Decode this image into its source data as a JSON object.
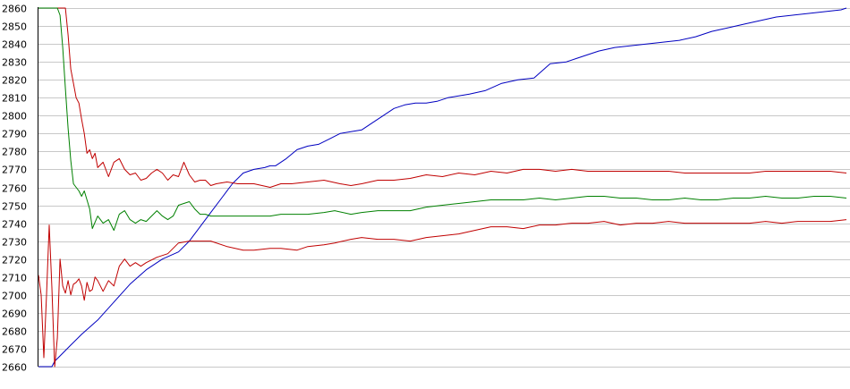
{
  "chart_data": {
    "type": "line",
    "title": "",
    "xlabel": "",
    "ylabel": "",
    "ylim": [
      2660,
      2860
    ],
    "xlim": [
      0,
      300
    ],
    "grid": true,
    "yticks": [
      "2660",
      "2670",
      "2680",
      "2690",
      "2700",
      "2710",
      "2720",
      "2730",
      "2740",
      "2750",
      "2760",
      "2770",
      "2780",
      "2790",
      "2800",
      "2810",
      "2820",
      "2830",
      "2840",
      "2850",
      "2860"
    ],
    "series": [
      {
        "key": "blue",
        "color": "#0000c0",
        "x": [
          0,
          5,
          6,
          8,
          12,
          16,
          22,
          28,
          34,
          40,
          46,
          52,
          56,
          60,
          64,
          68,
          72,
          76,
          80,
          84,
          86,
          88,
          92,
          96,
          100,
          104,
          108,
          112,
          116,
          120,
          124,
          128,
          132,
          136,
          140,
          144,
          148,
          152,
          156,
          160,
          166,
          172,
          178,
          184,
          190,
          196,
          200,
          204,
          208,
          214,
          220,
          226,
          232,
          238,
          244,
          250,
          256,
          262,
          268,
          274,
          280,
          286,
          292,
          298,
          300
        ],
        "values": [
          2660,
          2660,
          2663,
          2666,
          2672,
          2678,
          2686,
          2696,
          2706,
          2714,
          2720,
          2724,
          2730,
          2738,
          2746,
          2754,
          2762,
          2768,
          2770,
          2771,
          2772,
          2772,
          2776,
          2781,
          2783,
          2784,
          2787,
          2790,
          2791,
          2792,
          2796,
          2800,
          2804,
          2806,
          2807,
          2807,
          2808,
          2810,
          2811,
          2812,
          2814,
          2818,
          2820,
          2821,
          2829,
          2830,
          2832,
          2834,
          2836,
          2838,
          2839,
          2840,
          2841,
          2842,
          2844,
          2847,
          2849,
          2851,
          2853,
          2855,
          2856,
          2857,
          2858,
          2859,
          2860
        ]
      },
      {
        "key": "red-upper",
        "color": "#c00000",
        "x": [
          0,
          2,
          4,
          6,
          8,
          9,
          10,
          11,
          12,
          13,
          14,
          15,
          16,
          17,
          18,
          19,
          20,
          21,
          22,
          24,
          26,
          28,
          30,
          32,
          34,
          36,
          38,
          40,
          42,
          44,
          46,
          48,
          50,
          52,
          54,
          56,
          58,
          60,
          62,
          64,
          66,
          70,
          74,
          80,
          86,
          90,
          94,
          100,
          106,
          112,
          116,
          120,
          126,
          132,
          138,
          144,
          150,
          156,
          162,
          168,
          174,
          180,
          186,
          192,
          198,
          204,
          210,
          216,
          222,
          228,
          234,
          240,
          246,
          252,
          258,
          264,
          270,
          276,
          282,
          288,
          294,
          300
        ],
        "values": [
          2860,
          2860,
          2860,
          2860,
          2860,
          2860,
          2860,
          2845,
          2826,
          2818,
          2810,
          2807,
          2798,
          2790,
          2779,
          2781,
          2776,
          2779,
          2771,
          2774,
          2766,
          2774,
          2776,
          2770,
          2767,
          2768,
          2764,
          2765,
          2768,
          2770,
          2768,
          2764,
          2767,
          2766,
          2774,
          2767,
          2763,
          2764,
          2764,
          2761,
          2762,
          2763,
          2762,
          2762,
          2760,
          2762,
          2762,
          2763,
          2764,
          2762,
          2761,
          2762,
          2764,
          2764,
          2765,
          2767,
          2766,
          2768,
          2767,
          2769,
          2768,
          2770,
          2770,
          2769,
          2770,
          2769,
          2769,
          2769,
          2769,
          2769,
          2769,
          2768,
          2768,
          2768,
          2768,
          2768,
          2769,
          2769,
          2769,
          2769,
          2769,
          2768
        ]
      },
      {
        "key": "green",
        "color": "#008000",
        "x": [
          0,
          2,
          4,
          6,
          7,
          8,
          9,
          10,
          11,
          12,
          13,
          14,
          15,
          16,
          17,
          18,
          19,
          20,
          22,
          24,
          26,
          28,
          30,
          32,
          34,
          36,
          38,
          40,
          42,
          44,
          46,
          48,
          50,
          52,
          54,
          56,
          58,
          60,
          62,
          64,
          70,
          76,
          80,
          86,
          90,
          96,
          100,
          106,
          110,
          116,
          120,
          126,
          132,
          138,
          144,
          150,
          156,
          162,
          168,
          174,
          180,
          186,
          192,
          198,
          204,
          210,
          216,
          222,
          228,
          234,
          240,
          246,
          252,
          258,
          264,
          270,
          276,
          282,
          288,
          294,
          300
        ],
        "values": [
          2860,
          2860,
          2860,
          2860,
          2860,
          2856,
          2838,
          2815,
          2793,
          2775,
          2762,
          2760,
          2758,
          2755,
          2758,
          2753,
          2748,
          2737,
          2744,
          2740,
          2742,
          2736,
          2745,
          2747,
          2742,
          2740,
          2742,
          2741,
          2744,
          2747,
          2744,
          2742,
          2744,
          2750,
          2751,
          2752,
          2748,
          2745,
          2745,
          2744,
          2744,
          2744,
          2744,
          2744,
          2745,
          2745,
          2745,
          2746,
          2747,
          2745,
          2746,
          2747,
          2747,
          2747,
          2749,
          2750,
          2751,
          2752,
          2753,
          2753,
          2753,
          2754,
          2753,
          2754,
          2755,
          2755,
          2754,
          2754,
          2753,
          2753,
          2754,
          2753,
          2753,
          2754,
          2754,
          2755,
          2754,
          2754,
          2755,
          2755,
          2754
        ]
      },
      {
        "key": "red-lower",
        "color": "#c00000",
        "x": [
          0,
          1,
          2,
          3,
          4,
          5,
          6,
          7,
          8,
          9,
          10,
          11,
          12,
          13,
          14,
          15,
          16,
          17,
          18,
          19,
          20,
          21,
          22,
          24,
          26,
          28,
          30,
          32,
          34,
          36,
          38,
          40,
          44,
          48,
          52,
          56,
          60,
          64,
          70,
          76,
          80,
          86,
          90,
          96,
          100,
          106,
          110,
          116,
          120,
          126,
          132,
          138,
          144,
          150,
          156,
          162,
          168,
          174,
          180,
          186,
          192,
          198,
          204,
          210,
          216,
          222,
          228,
          234,
          240,
          246,
          252,
          258,
          264,
          270,
          276,
          282,
          288,
          294,
          300
        ],
        "values": [
          2711,
          2700,
          2665,
          2700,
          2739,
          2704,
          2660,
          2676,
          2720,
          2705,
          2701,
          2708,
          2700,
          2706,
          2707,
          2709,
          2705,
          2697,
          2707,
          2702,
          2703,
          2710,
          2708,
          2702,
          2708,
          2705,
          2716,
          2720,
          2716,
          2718,
          2716,
          2718,
          2721,
          2723,
          2729,
          2730,
          2730,
          2730,
          2727,
          2725,
          2725,
          2726,
          2726,
          2725,
          2727,
          2728,
          2729,
          2731,
          2732,
          2731,
          2731,
          2730,
          2732,
          2733,
          2734,
          2736,
          2738,
          2738,
          2737,
          2739,
          2739,
          2740,
          2740,
          2741,
          2739,
          2740,
          2740,
          2741,
          2740,
          2740,
          2740,
          2740,
          2740,
          2741,
          2740,
          2741,
          2741,
          2741,
          2742
        ]
      }
    ]
  }
}
